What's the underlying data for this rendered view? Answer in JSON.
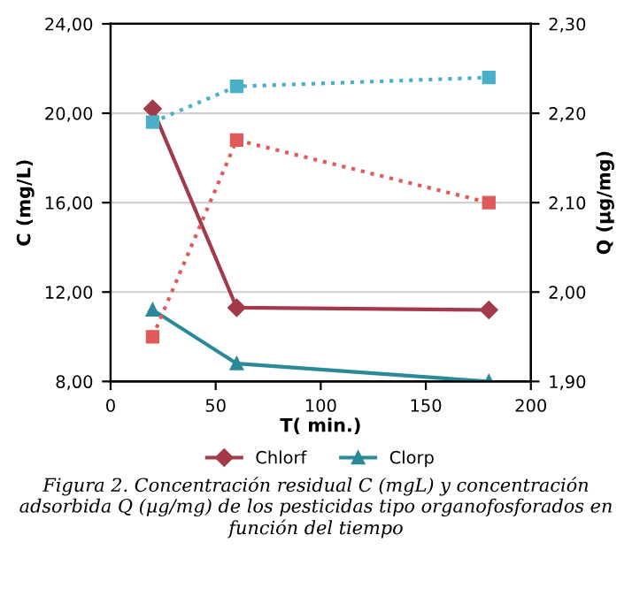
{
  "chart_data": {
    "type": "line",
    "xlabel": "T( min.)",
    "ylabel": "C (mg/L)",
    "y2label": "Q (µg/mg)",
    "xlim": [
      0,
      200
    ],
    "xticks": [
      0,
      50,
      100,
      150,
      200
    ],
    "ylim": [
      8,
      24
    ],
    "yticks": [
      {
        "value": 8,
        "label": "8,00"
      },
      {
        "value": 12,
        "label": "12,00"
      },
      {
        "value": 16,
        "label": "16,00"
      },
      {
        "value": 20,
        "label": "20,00"
      },
      {
        "value": 24,
        "label": "24,00"
      }
    ],
    "y2lim": [
      1.9,
      2.3
    ],
    "y2ticks": [
      {
        "value": 1.9,
        "label": "1,90"
      },
      {
        "value": 2.0,
        "label": "2,00"
      },
      {
        "value": 2.1,
        "label": "2,10"
      },
      {
        "value": 2.2,
        "label": "2,20"
      },
      {
        "value": 2.3,
        "label": "2,30"
      }
    ],
    "grid": "y",
    "legend": "bottom",
    "series": [
      {
        "name": "Chlorf",
        "color": "#a33a4a",
        "x": [
          20,
          60,
          180
        ],
        "values": [
          20.2,
          11.3,
          11.2
        ],
        "marker": "diamond",
        "line_style": "solid"
      },
      {
        "name": "Clorp",
        "color": "#2a8a9a",
        "x": [
          20,
          60,
          180
        ],
        "values": [
          11.2,
          8.8,
          8.0
        ],
        "marker": "triangle",
        "line_style": "solid"
      },
      {
        "color": "#e05a5a",
        "x": [
          20,
          60,
          180
        ],
        "values": [
          1.95,
          2.17,
          2.1
        ],
        "marker": "square",
        "line_style": "dotted",
        "axis": "y2"
      },
      {
        "color": "#4ab0c8",
        "x": [
          20,
          60,
          180
        ],
        "values": [
          2.19,
          2.23,
          2.24
        ],
        "marker": "square",
        "line_style": "dotted",
        "axis": "y2"
      }
    ],
    "annotations": [
      "Figura 2. Concentración residual C (mgL) y concentración adsorbida Q (µg/mg) de los pesticidas tipo organofosforados en función del tiempo"
    ]
  }
}
